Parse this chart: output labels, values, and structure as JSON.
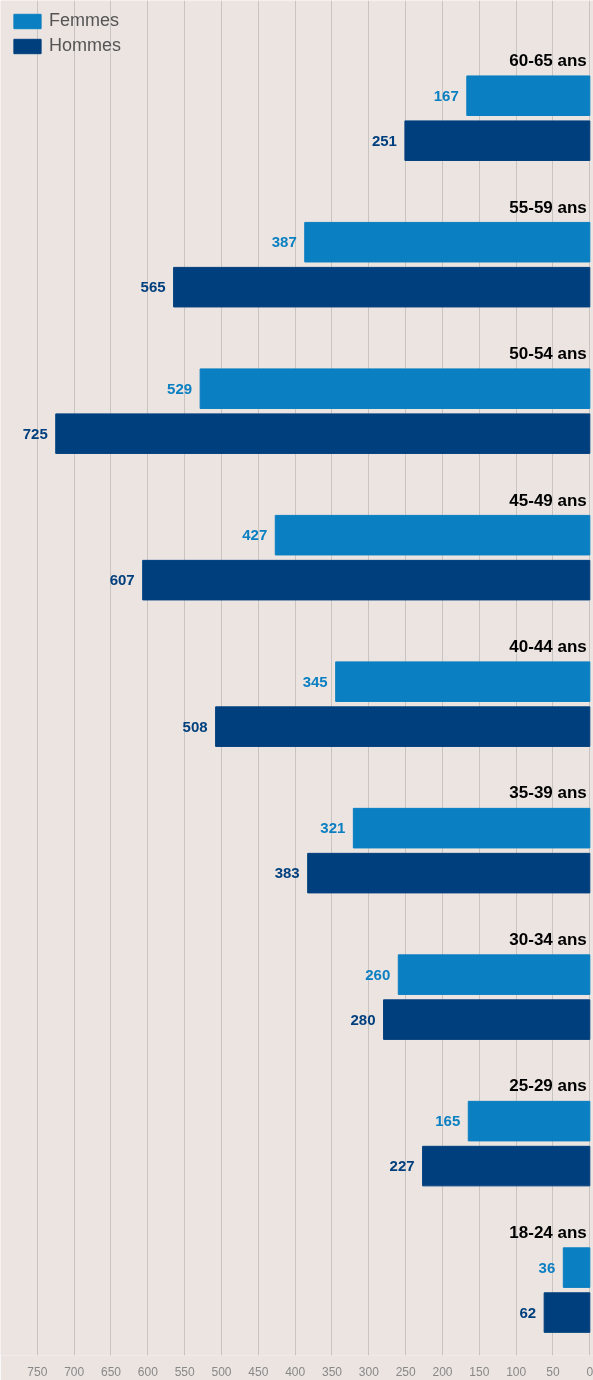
{
  "chart_data": {
    "type": "bar",
    "orientation": "horizontal",
    "categories": [
      "60-65 ans",
      "55-59 ans",
      "50-54 ans",
      "45-49 ans",
      "40-44 ans",
      "35-39 ans",
      "30-34 ans",
      "25-29 ans",
      "18-24 ans"
    ],
    "series": [
      {
        "name": "Femmes",
        "color": "#0a7fc2",
        "values": [
          167,
          387,
          529,
          427,
          345,
          321,
          260,
          165,
          36
        ]
      },
      {
        "name": "Hommes",
        "color": "#003f7d",
        "values": [
          251,
          565,
          725,
          607,
          508,
          383,
          280,
          227,
          62
        ]
      }
    ],
    "xlim": [
      800,
      -5
    ],
    "xticks": [
      750,
      700,
      650,
      600,
      550,
      500,
      450,
      400,
      350,
      300,
      250,
      200,
      150,
      100,
      50,
      0
    ],
    "grid": "x",
    "legend": "top left",
    "data_labels": true,
    "tick_labels": "x"
  }
}
